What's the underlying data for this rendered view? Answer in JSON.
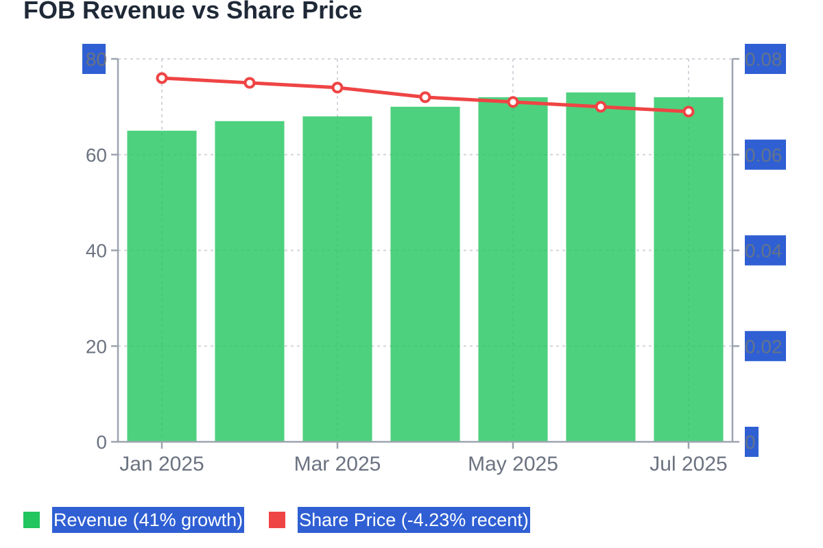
{
  "chart_data": {
    "type": "bar",
    "title": "FOB Revenue vs Share Price",
    "x": [
      "2025-01",
      "2025-02",
      "2025-03",
      "2025-04",
      "2025-05",
      "2025-06",
      "2025-07"
    ],
    "x_tick_labels": [
      {
        "x": "2025-01",
        "label": "Jan 2025"
      },
      {
        "x": "2025-03",
        "label": "Mar 2025"
      },
      {
        "x": "2025-05",
        "label": "May 2025"
      },
      {
        "x": "2025-07",
        "label": "Jul 2025"
      }
    ],
    "series": [
      {
        "name": "Revenue (41% growth)",
        "type": "bar",
        "axis": "left",
        "color": "#22c55e",
        "values": [
          65,
          67,
          68,
          70,
          72,
          73,
          72
        ]
      },
      {
        "name": "Share Price (-4.23% recent)",
        "type": "line",
        "axis": "right",
        "color": "#ef4444",
        "values": [
          0.076,
          0.075,
          0.074,
          0.072,
          0.071,
          0.07,
          0.069
        ]
      }
    ],
    "y_left": {
      "ylim": [
        0,
        80
      ],
      "ticks": [
        0,
        20,
        40,
        60,
        80
      ]
    },
    "y_right": {
      "ylim": [
        0,
        0.08
      ],
      "ticks": [
        "0",
        "0.02",
        "0.04",
        "0.06",
        "0.08"
      ]
    },
    "grid": true,
    "legend_position": "bottom-left"
  }
}
